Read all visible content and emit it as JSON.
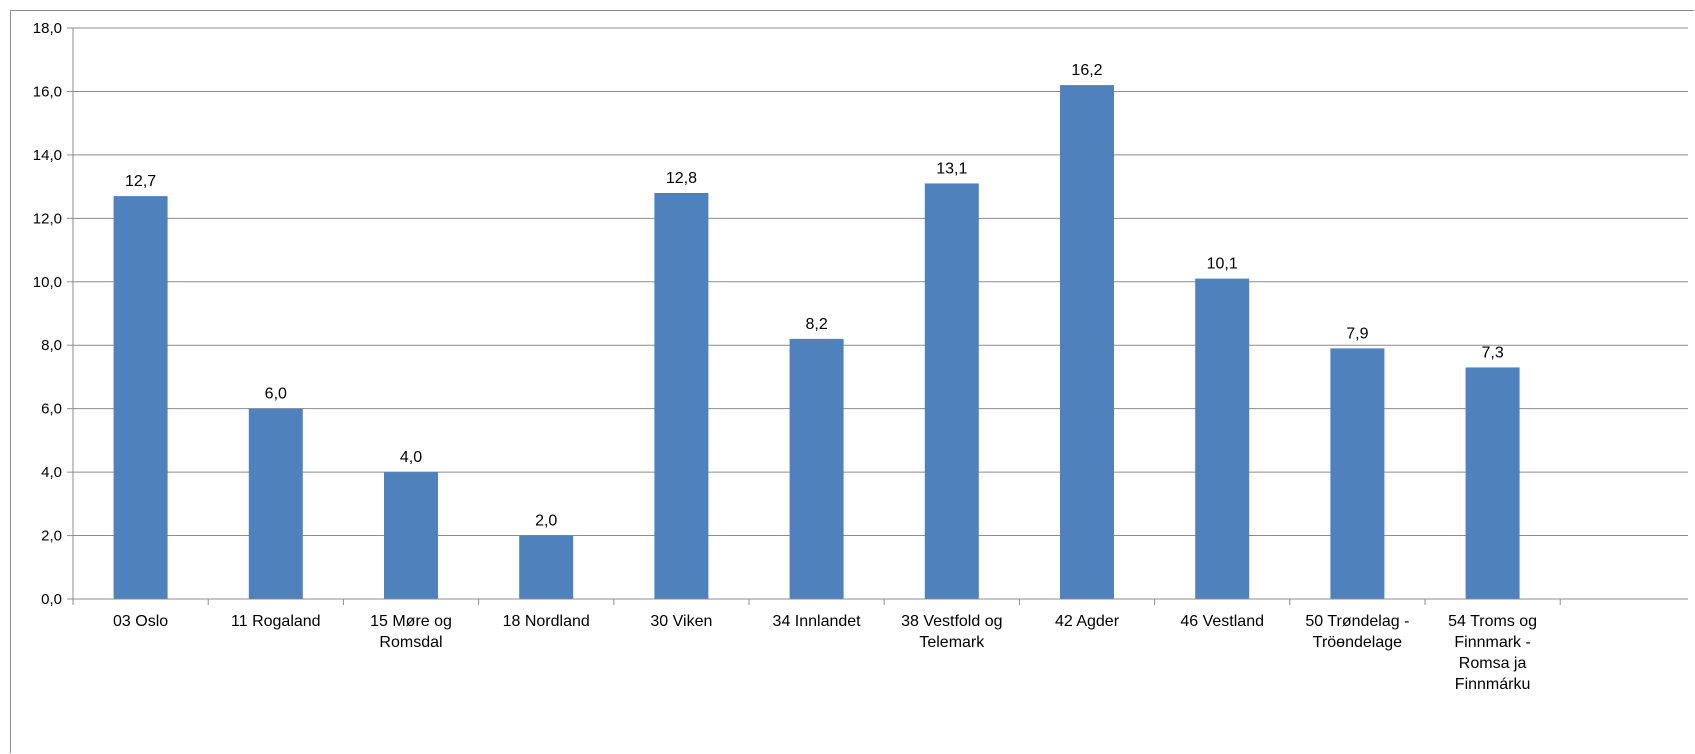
{
  "chart_data": {
    "type": "bar",
    "categories": [
      [
        "03 Oslo"
      ],
      [
        "11 Rogaland"
      ],
      [
        "15 Møre og",
        "Romsdal"
      ],
      [
        "18 Nordland"
      ],
      [
        "30 Viken"
      ],
      [
        "34 Innlandet"
      ],
      [
        "38 Vestfold og",
        "Telemark"
      ],
      [
        "42 Agder"
      ],
      [
        "46 Vestland"
      ],
      [
        "50 Trøndelag -",
        "Tröөndelage"
      ],
      [
        "54 Troms og",
        "Finnmark -",
        "Romsa ja",
        "Finnmárku"
      ]
    ],
    "values": [
      12.7,
      6.0,
      4.0,
      2.0,
      12.8,
      8.2,
      13.1,
      16.2,
      10.1,
      7.9,
      7.3
    ],
    "value_labels": [
      "12,7",
      "6,0",
      "4,0",
      "2,0",
      "12,8",
      "8,2",
      "13,1",
      "16,2",
      "10,1",
      "7,9",
      "7,3"
    ],
    "y_ticks": [
      "0,0",
      "2,0",
      "4,0",
      "6,0",
      "8,0",
      "10,0",
      "12,0",
      "14,0",
      "16,0",
      "18,0"
    ],
    "ylim": [
      0,
      18
    ],
    "y_step": 2,
    "grid": true,
    "legend": "none",
    "title": "",
    "xlabel": "",
    "ylabel": "",
    "bar_color": "#4f81bd",
    "grid_color": "#8c8c8c"
  }
}
